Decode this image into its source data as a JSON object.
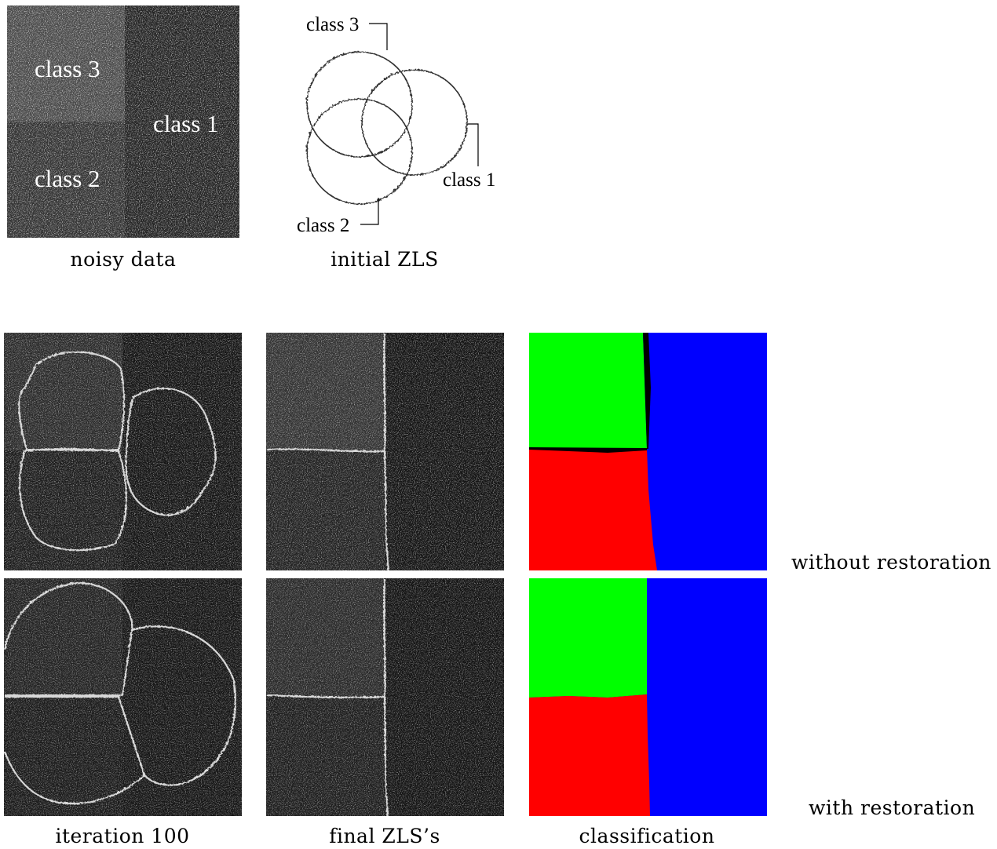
{
  "top": {
    "noisy_data": {
      "caption": "noisy data",
      "labels": [
        "class 3",
        "class 1",
        "class 2"
      ]
    },
    "initial_zls": {
      "caption": "initial ZLS",
      "labels": [
        "class 3",
        "class 1",
        "class 2"
      ]
    }
  },
  "bottom": {
    "captions": [
      "iteration 100",
      "final ZLS’s",
      "classification"
    ],
    "row_labels": [
      "without restoration",
      "with restoration"
    ]
  },
  "colors": {
    "class1": "#0000ff",
    "class2": "#ff0000",
    "class3": "#00ff00",
    "background": "#ffffff"
  }
}
